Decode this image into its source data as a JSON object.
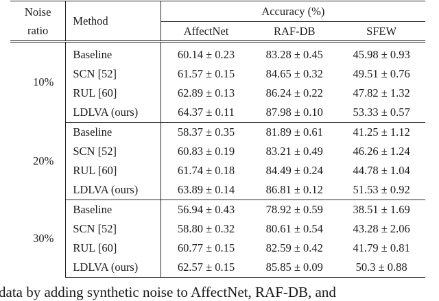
{
  "table": {
    "header": {
      "noise_ratio_line1": "Noise",
      "noise_ratio_line2": "ratio",
      "method": "Method",
      "accuracy": "Accuracy (%)",
      "datasets": [
        "AffectNet",
        "RAF-DB",
        "SFEW"
      ]
    },
    "groups": [
      {
        "noise": "10%",
        "rows": [
          {
            "method": "Baseline",
            "affectnet": "60.14 ± 0.23",
            "rafdb": "83.28 ± 0.45",
            "sfew": "45.98 ± 0.93",
            "bold": false
          },
          {
            "method": "SCN [52]",
            "affectnet": "61.57 ± 0.15",
            "rafdb": "84.65 ± 0.32",
            "sfew": "49.51 ± 0.76",
            "bold": false
          },
          {
            "method": "RUL [60]",
            "affectnet": "62.89 ± 0.13",
            "rafdb": "86.24 ± 0.22",
            "sfew": "47.82 ± 1.32",
            "bold": false
          },
          {
            "method": "LDLVA (ours)",
            "affectnet": "64.37 ± 0.11",
            "rafdb": "87.98 ± 0.10",
            "sfew": "53.33 ± 0.57",
            "bold": true
          }
        ]
      },
      {
        "noise": "20%",
        "rows": [
          {
            "method": "Baseline",
            "affectnet": "58.37 ± 0.35",
            "rafdb": "81.89 ± 0.61",
            "sfew": "41.25 ± 1.12",
            "bold": false
          },
          {
            "method": "SCN [52]",
            "affectnet": "60.83 ± 0.19",
            "rafdb": "83.21 ± 0.49",
            "sfew": "46.26 ± 1.24",
            "bold": false
          },
          {
            "method": "RUL [60]",
            "affectnet": "61.74 ± 0.18",
            "rafdb": "84.49 ± 0.24",
            "sfew": "44.78 ± 1.04",
            "bold": false
          },
          {
            "method": "LDLVA (ours)",
            "affectnet": "63.89 ± 0.14",
            "rafdb": "86.81 ± 0.12",
            "sfew": "51.53 ± 0.92",
            "bold": true
          }
        ]
      },
      {
        "noise": "30%",
        "rows": [
          {
            "method": "Baseline",
            "affectnet": "56.94 ± 0.43",
            "rafdb": "78.92 ± 0.59",
            "sfew": "38.51 ± 1.69",
            "bold": false
          },
          {
            "method": "SCN [52]",
            "affectnet": "58.80 ± 0.32",
            "rafdb": "80.61 ± 0.54",
            "sfew": "43.28 ± 2.06",
            "bold": false
          },
          {
            "method": "RUL [60]",
            "affectnet": "60.77 ± 0.15",
            "rafdb": "82.59 ± 0.42",
            "sfew": "41.79 ± 0.81",
            "bold": false
          },
          {
            "method": "LDLVA (ours)",
            "affectnet": "62.57 ± 0.15",
            "rafdb": "85.85 ± 0.09",
            "sfew": "50.3 ± 0.88",
            "bold": true
          }
        ]
      }
    ]
  },
  "caption_fragment": "data by adding synthetic noise to AffectNet, RAF-DB, and"
}
